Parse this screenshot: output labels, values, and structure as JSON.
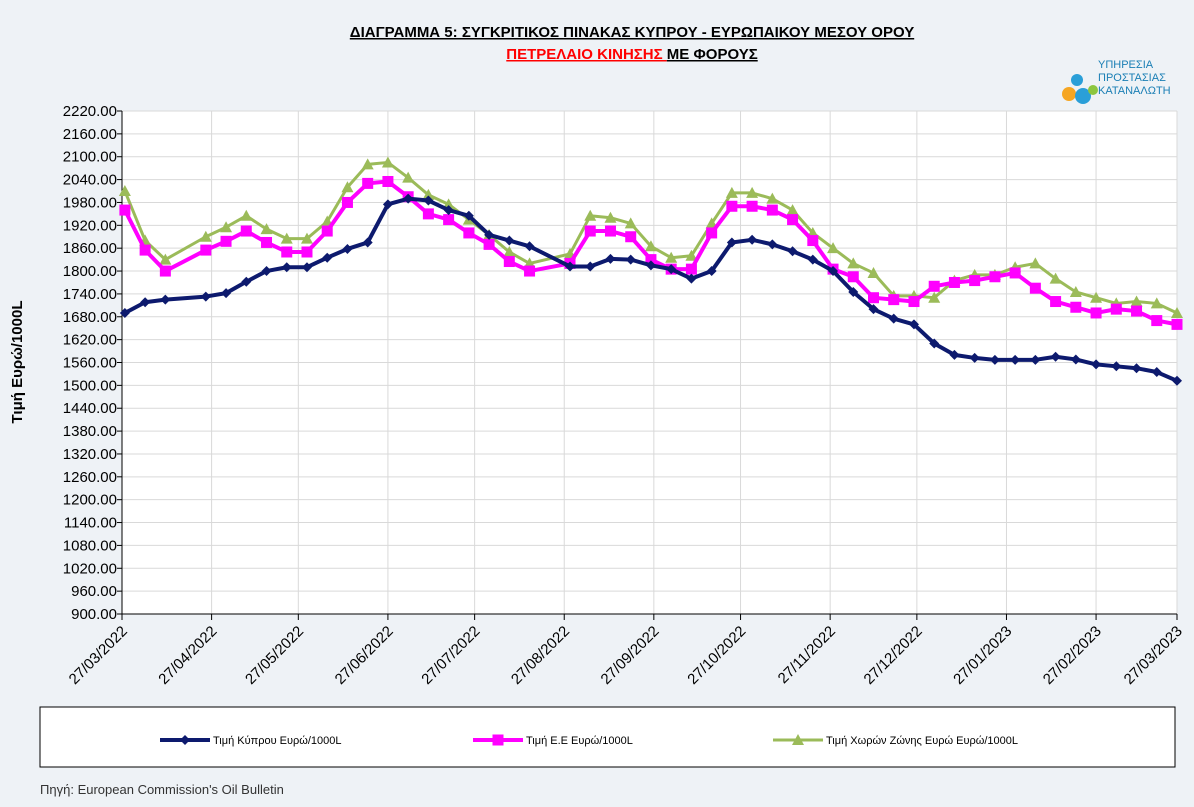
{
  "chart_data": {
    "type": "line",
    "title": "ΔΙΑΓΡΑΜΜΑ 5: ΣΥΓΚΡΙΤΙΚΟΣ ΠΙΝΑΚΑΣ ΚΥΠΡΟΥ - ΕΥΡΩΠΑΙΚΟΥ ΜΕΣΟΥ ΟΡΟΥ",
    "subtitle": [
      "ΠΕΤΡΕΛΑΙΟ ΚΙΝΗΣΗΣ ",
      "ΜΕ  ΦΟΡΟΥΣ"
    ],
    "logo_text": [
      "ΥΠΗΡΕΣΙΑ",
      "ΠΡΟΣΤΑΣΙΑΣ",
      "ΚΑΤΑΝΑΛΩΤΗ"
    ],
    "y_label": "Τιμή Ευρώ/1000L",
    "source": "Πηγή: European Commission's Oil Bulletin",
    "x": [
      "28/03/2022",
      "04/04/2022",
      "11/04/2022",
      "25/04/2022",
      "02/05/2022",
      "09/05/2022",
      "16/05/2022",
      "23/05/2022",
      "30/05/2022",
      "06/06/2022",
      "13/06/2022",
      "20/06/2022",
      "27/06/2022",
      "04/07/2022",
      "11/07/2022",
      "18/07/2022",
      "25/07/2022",
      "01/08/2022",
      "08/08/2022",
      "15/08/2022",
      "29/08/2022",
      "05/09/2022",
      "12/09/2022",
      "19/09/2022",
      "26/09/2022",
      "03/10/2022",
      "10/10/2022",
      "17/10/2022",
      "24/10/2022",
      "31/10/2022",
      "07/11/2022",
      "14/11/2022",
      "21/11/2022",
      "28/11/2022",
      "05/12/2022",
      "12/12/2022",
      "19/12/2022",
      "26/12/2022",
      "02/01/2023",
      "09/01/2023",
      "16/01/2023",
      "23/01/2023",
      "30/01/2023",
      "06/02/2023",
      "13/02/2023",
      "20/02/2023",
      "27/02/2023",
      "06/03/2023",
      "13/03/2023",
      "20/03/2023",
      "27/03/2023"
    ],
    "series": [
      {
        "name": "Τιμή Κύπρου Ευρώ/1000L",
        "color": "#0d1a6e",
        "marker": "diamond",
        "values": [
          1690,
          1718,
          1725,
          1733,
          1742,
          1772,
          1800,
          1810,
          1810,
          1835,
          1858,
          1875,
          1975,
          1990,
          1985,
          1960,
          1945,
          1895,
          1880,
          1865,
          1812,
          1812,
          1832,
          1830,
          1815,
          1805,
          1780,
          1800,
          1875,
          1882,
          1870,
          1852,
          1830,
          1800,
          1745,
          1700,
          1675,
          1660,
          1610,
          1580,
          1572,
          1567,
          1567,
          1567,
          1575,
          1568,
          1555,
          1550,
          1545,
          1535,
          1512
        ]
      },
      {
        "name": "Τιμή Ε.Ε Ευρώ/1000L",
        "color": "#ff00ff",
        "marker": "square",
        "values": [
          1960,
          1855,
          1800,
          1855,
          1878,
          1905,
          1875,
          1850,
          1850,
          1905,
          1980,
          2030,
          2035,
          1995,
          1950,
          1935,
          1900,
          1870,
          1825,
          1800,
          1820,
          1905,
          1905,
          1890,
          1830,
          1805,
          1805,
          1900,
          1970,
          1970,
          1960,
          1935,
          1880,
          1805,
          1785,
          1730,
          1725,
          1720,
          1760,
          1770,
          1775,
          1785,
          1795,
          1755,
          1720,
          1705,
          1690,
          1700,
          1695,
          1670,
          1660
        ]
      },
      {
        "name": "Τιμή Χωρών Ζώνης Ευρώ Ευρώ/1000L",
        "color": "#9bbb59",
        "marker": "triangle",
        "values": [
          2010,
          1880,
          1830,
          1890,
          1915,
          1945,
          1910,
          1885,
          1885,
          1930,
          2020,
          2080,
          2085,
          2045,
          2000,
          1975,
          1935,
          1895,
          1850,
          1820,
          1845,
          1945,
          1940,
          1925,
          1865,
          1835,
          1840,
          1925,
          2005,
          2005,
          1990,
          1960,
          1900,
          1860,
          1820,
          1795,
          1735,
          1735,
          1730,
          1775,
          1790,
          1790,
          1810,
          1820,
          1780,
          1745,
          1730,
          1715,
          1720,
          1715,
          1690
        ]
      }
    ],
    "xlim": [
      "27/03/2022",
      "27/03/2023"
    ],
    "xticks": [
      "27/03/2022",
      "27/04/2022",
      "27/05/2022",
      "27/06/2022",
      "27/07/2022",
      "27/08/2022",
      "27/09/2022",
      "27/10/2022",
      "27/11/2022",
      "27/12/2022",
      "27/01/2023",
      "27/02/2023",
      "27/03/2023"
    ],
    "ylim": [
      900,
      2220
    ],
    "yticks": [
      {
        "value": 900,
        "label": "900.00"
      },
      {
        "value": 960,
        "label": "960.00"
      },
      {
        "value": 1020,
        "label": "1020.00"
      },
      {
        "value": 1080,
        "label": "1080.00"
      },
      {
        "value": 1140,
        "label": "1140.00"
      },
      {
        "value": 1200,
        "label": "1200.00"
      },
      {
        "value": 1260,
        "label": "1260.00"
      },
      {
        "value": 1320,
        "label": "1320.00"
      },
      {
        "value": 1380,
        "label": "1380.00"
      },
      {
        "value": 1440,
        "label": "1440.00"
      },
      {
        "value": 1500,
        "label": "1500.00"
      },
      {
        "value": 1560,
        "label": "1560.00"
      },
      {
        "value": 1620,
        "label": "1620.00"
      },
      {
        "value": 1680,
        "label": "1680.00"
      },
      {
        "value": 1740,
        "label": "1740.00"
      },
      {
        "value": 1800,
        "label": "1800.00"
      },
      {
        "value": 1860,
        "label": "1860.00"
      },
      {
        "value": 1920,
        "label": "1920.00"
      },
      {
        "value": 1980,
        "label": "1980.00"
      },
      {
        "value": 2040,
        "label": "2040.00"
      },
      {
        "value": 2100,
        "label": "2100.00"
      },
      {
        "value": 2160,
        "label": "2160.00"
      },
      {
        "value": 2220,
        "label": "2220.00"
      }
    ],
    "grid": true,
    "legend": "bottom"
  }
}
